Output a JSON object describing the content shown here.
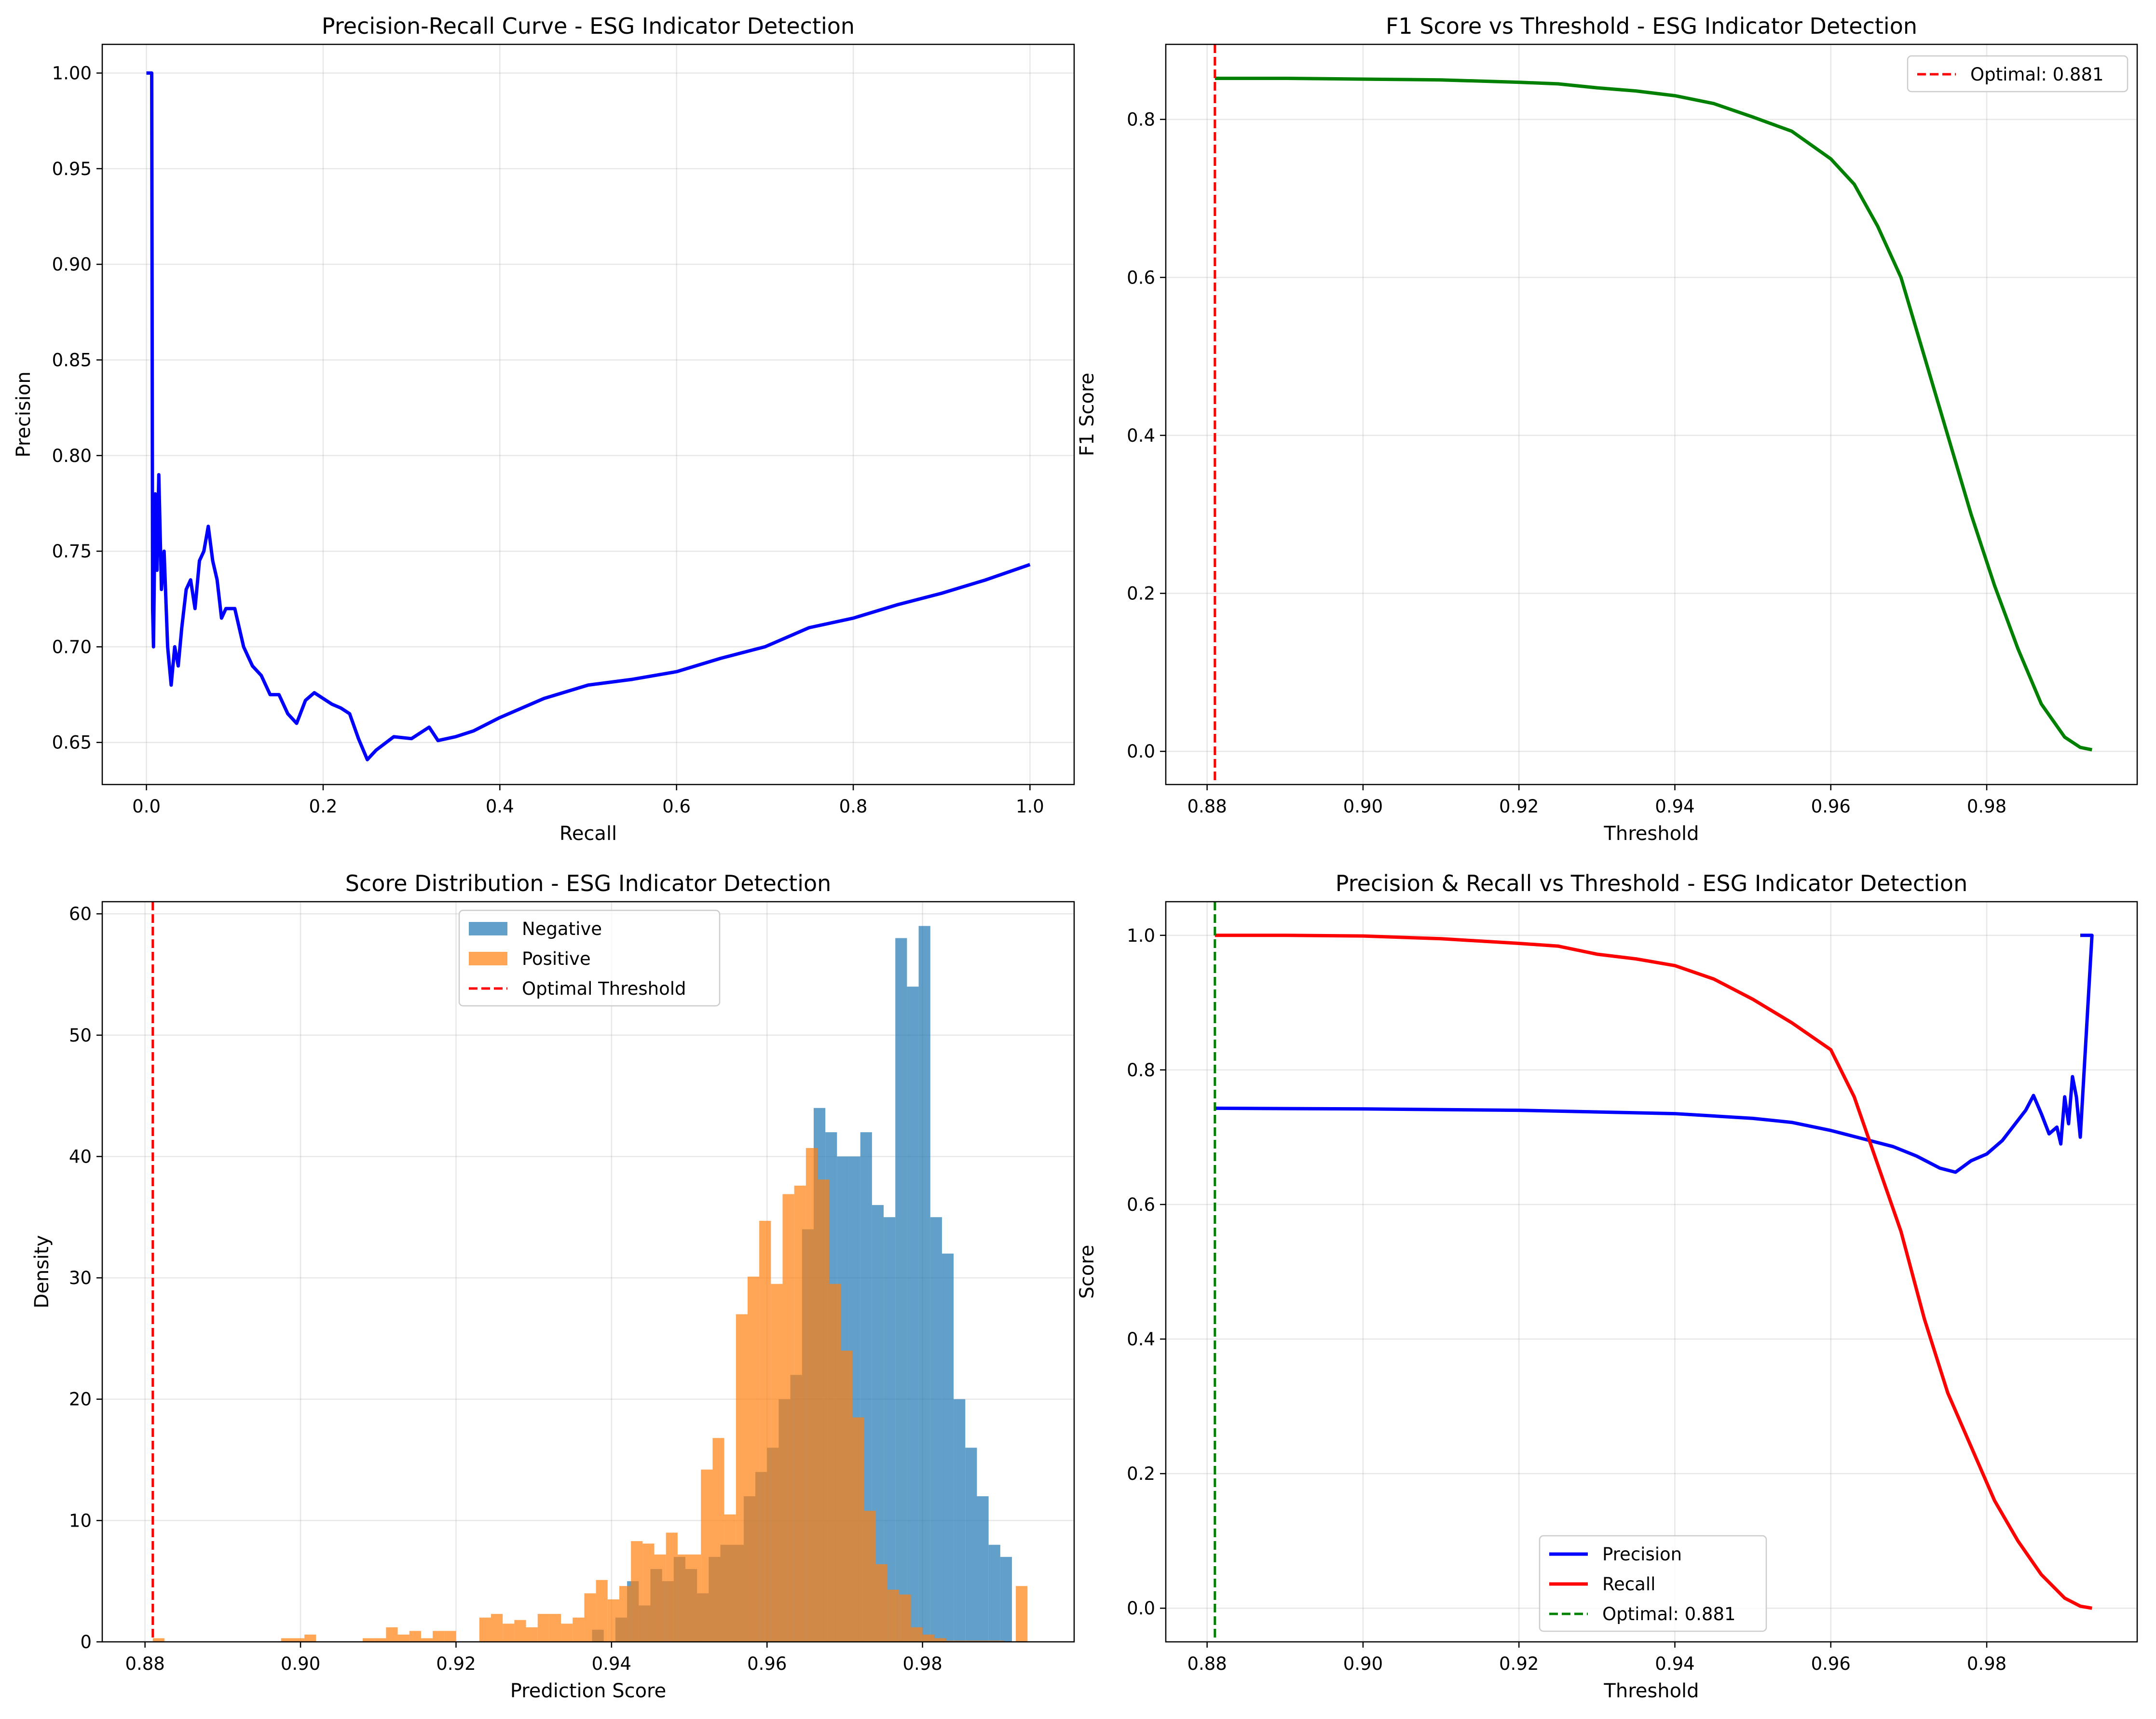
{
  "chart_data": [
    {
      "type": "line",
      "title": "Precision-Recall Curve - ESG Indicator Detection",
      "xlabel": "Recall",
      "ylabel": "Precision",
      "xlim": [
        -0.05,
        1.05
      ],
      "ylim": [
        0.628,
        1.015
      ],
      "xticks": [
        "0.0",
        "0.2",
        "0.4",
        "0.6",
        "0.8",
        "1.0"
      ],
      "yticks": [
        "0.65",
        "0.70",
        "0.75",
        "0.80",
        "0.85",
        "0.90",
        "0.95",
        "1.00"
      ],
      "grid": true,
      "series": [
        {
          "color": "#0000ff",
          "x": [
            0.0,
            0.004,
            0.006,
            0.007,
            0.008,
            0.01,
            0.012,
            0.014,
            0.017,
            0.02,
            0.024,
            0.028,
            0.032,
            0.036,
            0.04,
            0.045,
            0.05,
            0.055,
            0.06,
            0.065,
            0.07,
            0.075,
            0.08,
            0.085,
            0.09,
            0.1,
            0.11,
            0.12,
            0.13,
            0.14,
            0.15,
            0.16,
            0.17,
            0.18,
            0.19,
            0.2,
            0.21,
            0.22,
            0.23,
            0.24,
            0.25,
            0.26,
            0.28,
            0.3,
            0.32,
            0.33,
            0.35,
            0.37,
            0.4,
            0.45,
            0.5,
            0.55,
            0.6,
            0.65,
            0.7,
            0.75,
            0.8,
            0.85,
            0.9,
            0.95,
            1.0
          ],
          "y": [
            1.0,
            1.0,
            1.0,
            0.72,
            0.7,
            0.78,
            0.74,
            0.79,
            0.73,
            0.75,
            0.7,
            0.68,
            0.7,
            0.69,
            0.71,
            0.73,
            0.735,
            0.72,
            0.745,
            0.75,
            0.763,
            0.745,
            0.735,
            0.715,
            0.72,
            0.72,
            0.7,
            0.69,
            0.685,
            0.675,
            0.675,
            0.665,
            0.66,
            0.672,
            0.676,
            0.673,
            0.67,
            0.668,
            0.665,
            0.652,
            0.641,
            0.646,
            0.653,
            0.652,
            0.658,
            0.651,
            0.653,
            0.656,
            0.663,
            0.673,
            0.68,
            0.683,
            0.687,
            0.694,
            0.7,
            0.71,
            0.715,
            0.722,
            0.728,
            0.735,
            0.743
          ]
        }
      ]
    },
    {
      "type": "line",
      "title": "F1 Score vs Threshold - ESG Indicator Detection",
      "xlabel": "Threshold",
      "ylabel": "F1 Score",
      "xlim": [
        0.8747,
        0.9993
      ],
      "ylim": [
        -0.042,
        0.895
      ],
      "xticks": [
        "0.88",
        "0.90",
        "0.92",
        "0.94",
        "0.96",
        "0.98"
      ],
      "yticks": [
        "0.0",
        "0.2",
        "0.4",
        "0.6",
        "0.8"
      ],
      "grid": true,
      "legend": "top-right",
      "series": [
        {
          "color": "#008000",
          "x": [
            0.881,
            0.89,
            0.9,
            0.91,
            0.92,
            0.925,
            0.93,
            0.935,
            0.94,
            0.945,
            0.95,
            0.955,
            0.96,
            0.963,
            0.966,
            0.969,
            0.972,
            0.975,
            0.978,
            0.981,
            0.984,
            0.987,
            0.99,
            0.992,
            0.9935
          ],
          "y": [
            0.852,
            0.852,
            0.851,
            0.85,
            0.847,
            0.845,
            0.84,
            0.836,
            0.83,
            0.82,
            0.803,
            0.785,
            0.75,
            0.718,
            0.665,
            0.6,
            0.5,
            0.4,
            0.3,
            0.21,
            0.13,
            0.06,
            0.018,
            0.005,
            0.002
          ]
        }
      ],
      "vline": {
        "x": 0.881,
        "color": "#ff0000",
        "label": "Optimal: 0.881"
      }
    },
    {
      "type": "bar",
      "title": "Score Distribution - ESG Indicator Detection",
      "xlabel": "Prediction Score",
      "ylabel": "Density",
      "xlim": [
        0.8745,
        0.9995
      ],
      "ylim": [
        0,
        61
      ],
      "xticks": [
        "0.88",
        "0.90",
        "0.92",
        "0.94",
        "0.96",
        "0.98"
      ],
      "yticks": [
        "0",
        "10",
        "20",
        "30",
        "40",
        "50",
        "60"
      ],
      "grid": true,
      "legend": "top-center",
      "bin_width": 0.0015,
      "series": [
        {
          "name": "Negative",
          "color": "#1f77b4",
          "x": [
            0.9375,
            0.939,
            0.9405,
            0.942,
            0.9435,
            0.945,
            0.9465,
            0.948,
            0.9495,
            0.951,
            0.9525,
            0.954,
            0.9555,
            0.957,
            0.9585,
            0.96,
            0.9615,
            0.963,
            0.9645,
            0.966,
            0.9675,
            0.969,
            0.9705,
            0.972,
            0.9735,
            0.975,
            0.9765,
            0.978,
            0.9795,
            0.981,
            0.9825,
            0.984,
            0.9855,
            0.987,
            0.9885,
            0.99
          ],
          "values": [
            1,
            0,
            2,
            5,
            3,
            6,
            5,
            7,
            6,
            4,
            7,
            8,
            8,
            12,
            14,
            16,
            20,
            22,
            34,
            44,
            42,
            40,
            40,
            42,
            36,
            35,
            58,
            54,
            59,
            35,
            32,
            20,
            16,
            12,
            8,
            7
          ]
        },
        {
          "name": "Positive",
          "color": "#ff7f0e",
          "x": [
            0.881,
            0.8825,
            0.8975,
            0.899,
            0.9005,
            0.908,
            0.9095,
            0.911,
            0.9125,
            0.914,
            0.9155,
            0.917,
            0.9185,
            0.923,
            0.9245,
            0.926,
            0.9275,
            0.929,
            0.9305,
            0.932,
            0.9335,
            0.935,
            0.9365,
            0.938,
            0.9395,
            0.941,
            0.9425,
            0.944,
            0.9455,
            0.947,
            0.9485,
            0.95,
            0.9515,
            0.953,
            0.9545,
            0.956,
            0.9575,
            0.959,
            0.9605,
            0.962,
            0.9635,
            0.965,
            0.9665,
            0.968,
            0.9695,
            0.971,
            0.9725,
            0.974,
            0.9755,
            0.977,
            0.9785,
            0.98,
            0.9815,
            0.983,
            0.9845,
            0.986,
            0.9875,
            0.989,
            0.9905,
            0.992
          ],
          "values": [
            0.3,
            0,
            0.3,
            0.3,
            0.6,
            0.3,
            0.3,
            1.2,
            0.6,
            0.9,
            0.3,
            0.9,
            0.9,
            2.0,
            2.3,
            1.5,
            1.8,
            1.2,
            2.3,
            2.3,
            1.5,
            2.0,
            4.0,
            5.1,
            3.5,
            4.6,
            8.3,
            8.1,
            7.2,
            9.0,
            7.2,
            7.2,
            14.2,
            16.8,
            10.5,
            27.0,
            30.1,
            34.7,
            29.5,
            36.9,
            37.6,
            40.7,
            38.1,
            29.5,
            24.0,
            18.5,
            10.8,
            6.4,
            4.3,
            3.9,
            1.2,
            0.6,
            0.3,
            0.1,
            0.1,
            0.1,
            0.1,
            0.1,
            0,
            4.6
          ]
        }
      ],
      "vline": {
        "x": 0.881,
        "color": "#ff0000",
        "label": "Optimal Threshold"
      }
    },
    {
      "type": "line",
      "title": "Precision & Recall vs Threshold - ESG Indicator Detection",
      "xlabel": "Threshold",
      "ylabel": "Score",
      "xlim": [
        0.8747,
        0.9993
      ],
      "ylim": [
        -0.05,
        1.05
      ],
      "xticks": [
        "0.88",
        "0.90",
        "0.92",
        "0.94",
        "0.96",
        "0.98"
      ],
      "yticks": [
        "0.0",
        "0.2",
        "0.4",
        "0.6",
        "0.8",
        "1.0"
      ],
      "grid": true,
      "legend": "bottom-center",
      "series": [
        {
          "name": "Precision",
          "color": "#0000ff",
          "x": [
            0.881,
            0.9,
            0.92,
            0.94,
            0.95,
            0.955,
            0.96,
            0.965,
            0.968,
            0.971,
            0.974,
            0.976,
            0.978,
            0.98,
            0.982,
            0.984,
            0.985,
            0.986,
            0.987,
            0.988,
            0.989,
            0.9895,
            0.99,
            0.9905,
            0.991,
            0.9915,
            0.992,
            0.9935
          ],
          "y": [
            0.743,
            0.742,
            0.74,
            0.735,
            0.728,
            0.722,
            0.71,
            0.695,
            0.686,
            0.672,
            0.654,
            0.648,
            0.665,
            0.675,
            0.695,
            0.725,
            0.74,
            0.762,
            0.735,
            0.705,
            0.715,
            0.69,
            0.76,
            0.72,
            0.79,
            0.76,
            0.7,
            1.0
          ],
          "stepAt": [
            0.992,
            1.0
          ]
        },
        {
          "name": "Recall",
          "color": "#ff0000",
          "x": [
            0.881,
            0.89,
            0.9,
            0.91,
            0.92,
            0.925,
            0.93,
            0.935,
            0.94,
            0.945,
            0.95,
            0.955,
            0.96,
            0.963,
            0.966,
            0.969,
            0.972,
            0.975,
            0.978,
            0.981,
            0.984,
            0.987,
            0.99,
            0.992,
            0.9935
          ],
          "y": [
            1.0,
            1.0,
            0.999,
            0.995,
            0.988,
            0.984,
            0.972,
            0.965,
            0.955,
            0.935,
            0.905,
            0.87,
            0.83,
            0.76,
            0.66,
            0.56,
            0.43,
            0.32,
            0.24,
            0.16,
            0.1,
            0.05,
            0.015,
            0.003,
            0.0
          ]
        }
      ],
      "vline": {
        "x": 0.881,
        "color": "#008000",
        "label": "Optimal: 0.881"
      }
    }
  ]
}
